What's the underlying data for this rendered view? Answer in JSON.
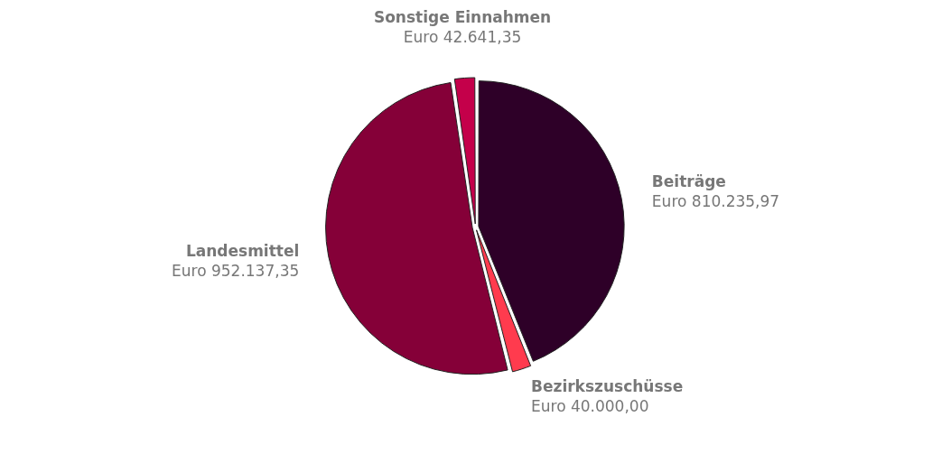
{
  "chart_data": {
    "type": "pie",
    "categories": [
      "Beiträge",
      "Bezirkszuschüsse",
      "Landesmittel",
      "Sonstige Einnahmen"
    ],
    "values": [
      810235.97,
      40000.0,
      952137.35,
      42641.35
    ],
    "value_labels": [
      "Euro 810.235,97",
      "Euro 40.000,00",
      "Euro 952.137,35",
      "Euro 42.641,35"
    ],
    "colors": [
      "#2e0028",
      "#ff3b4e",
      "#850038",
      "#c4004a"
    ],
    "legend": false
  }
}
